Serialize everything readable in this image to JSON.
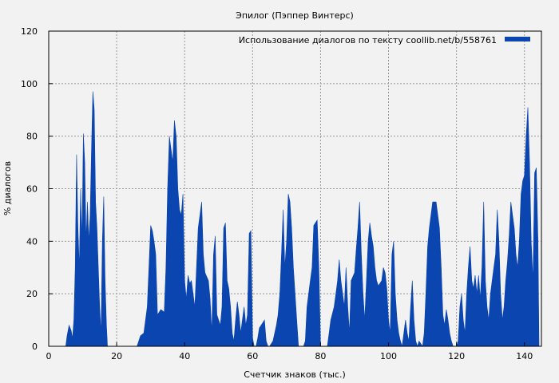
{
  "chart_data": {
    "type": "area",
    "title": "Эпилог (Пэппер Винтерс)",
    "xlabel": "Счетчик знаков (тыс.)",
    "ylabel": "% диалогов",
    "xlim": [
      0,
      145
    ],
    "ylim": [
      0,
      120
    ],
    "x_ticks": [
      0,
      20,
      40,
      60,
      80,
      100,
      120,
      140
    ],
    "y_ticks": [
      0,
      20,
      40,
      60,
      80,
      100,
      120
    ],
    "grid": true,
    "legend_position": "top-right",
    "series": [
      {
        "name": "Использование диалогов по тексту  coollib.net/b/558761",
        "color": "#0b45b0",
        "points": [
          [
            0,
            0
          ],
          [
            5,
            0
          ],
          [
            5.4,
            4
          ],
          [
            6,
            8
          ],
          [
            6.6,
            6
          ],
          [
            7,
            3
          ],
          [
            7.4,
            10
          ],
          [
            7.8,
            30
          ],
          [
            8.2,
            73
          ],
          [
            8.6,
            45
          ],
          [
            9,
            30
          ],
          [
            9.4,
            60
          ],
          [
            9.8,
            40
          ],
          [
            10.2,
            81
          ],
          [
            10.6,
            70
          ],
          [
            11,
            40
          ],
          [
            11.4,
            55
          ],
          [
            11.8,
            40
          ],
          [
            12.2,
            50
          ],
          [
            12.6,
            75
          ],
          [
            13,
            97
          ],
          [
            13.4,
            90
          ],
          [
            13.8,
            55
          ],
          [
            14.2,
            45
          ],
          [
            14.6,
            30
          ],
          [
            15,
            15
          ],
          [
            15.4,
            5
          ],
          [
            15.8,
            40
          ],
          [
            16.2,
            57
          ],
          [
            16.6,
            25
          ],
          [
            17,
            8
          ],
          [
            17.3,
            0
          ],
          [
            26,
            0
          ],
          [
            27,
            4
          ],
          [
            28,
            5
          ],
          [
            29,
            15
          ],
          [
            29.5,
            30
          ],
          [
            30,
            46
          ],
          [
            30.5,
            44
          ],
          [
            31,
            40
          ],
          [
            31.5,
            35
          ],
          [
            32,
            12
          ],
          [
            33,
            14
          ],
          [
            34,
            13
          ],
          [
            34.5,
            30
          ],
          [
            35,
            60
          ],
          [
            35.5,
            80
          ],
          [
            36,
            75
          ],
          [
            36.5,
            70
          ],
          [
            37,
            86
          ],
          [
            37.5,
            80
          ],
          [
            38,
            60
          ],
          [
            38.5,
            52
          ],
          [
            39,
            50
          ],
          [
            39.5,
            58
          ],
          [
            40,
            25
          ],
          [
            40.5,
            18
          ],
          [
            41,
            27
          ],
          [
            41.5,
            24
          ],
          [
            42,
            25
          ],
          [
            42.5,
            20
          ],
          [
            43,
            15
          ],
          [
            43.5,
            30
          ],
          [
            44,
            45
          ],
          [
            44.5,
            50
          ],
          [
            45,
            55
          ],
          [
            45.5,
            35
          ],
          [
            46,
            28
          ],
          [
            47,
            25
          ],
          [
            47.5,
            18
          ],
          [
            48,
            5
          ],
          [
            48.5,
            35
          ],
          [
            49,
            42
          ],
          [
            49.5,
            12
          ],
          [
            50,
            10
          ],
          [
            50.5,
            8
          ],
          [
            51,
            15
          ],
          [
            51.5,
            45
          ],
          [
            52,
            47
          ],
          [
            52.5,
            25
          ],
          [
            53,
            22
          ],
          [
            53.5,
            15
          ],
          [
            54,
            5
          ],
          [
            54.5,
            2
          ],
          [
            55,
            10
          ],
          [
            55.5,
            17
          ],
          [
            56,
            12
          ],
          [
            56.5,
            5
          ],
          [
            57,
            10
          ],
          [
            57.5,
            15
          ],
          [
            58,
            8
          ],
          [
            58.5,
            12
          ],
          [
            59,
            43
          ],
          [
            59.5,
            44
          ],
          [
            60,
            3
          ],
          [
            60.5,
            0
          ],
          [
            61,
            0
          ],
          [
            61.5,
            3
          ],
          [
            62,
            7
          ],
          [
            63,
            9
          ],
          [
            63.5,
            10
          ],
          [
            64,
            2
          ],
          [
            64.5,
            0
          ],
          [
            65,
            0
          ],
          [
            66,
            2
          ],
          [
            67,
            8
          ],
          [
            67.5,
            12
          ],
          [
            68,
            20
          ],
          [
            68.5,
            35
          ],
          [
            69,
            52
          ],
          [
            69.5,
            30
          ],
          [
            70,
            40
          ],
          [
            70.5,
            58
          ],
          [
            71,
            55
          ],
          [
            71.5,
            45
          ],
          [
            72,
            30
          ],
          [
            72.5,
            20
          ],
          [
            73,
            10
          ],
          [
            73.5,
            0
          ],
          [
            74,
            0
          ],
          [
            75,
            0
          ],
          [
            75.5,
            2
          ],
          [
            76,
            15
          ],
          [
            77,
            25
          ],
          [
            77.5,
            30
          ],
          [
            78,
            46
          ],
          [
            78.5,
            47
          ],
          [
            79,
            48
          ],
          [
            79.5,
            30
          ],
          [
            80,
            0
          ],
          [
            82,
            0
          ],
          [
            82.5,
            5
          ],
          [
            83,
            10
          ],
          [
            84,
            15
          ],
          [
            84.5,
            20
          ],
          [
            85,
            25
          ],
          [
            85.5,
            33
          ],
          [
            86,
            25
          ],
          [
            87,
            15
          ],
          [
            87.5,
            30
          ],
          [
            88,
            15
          ],
          [
            88.5,
            5
          ],
          [
            89,
            25
          ],
          [
            90,
            28
          ],
          [
            90.5,
            37
          ],
          [
            91,
            45
          ],
          [
            91.5,
            55
          ],
          [
            92,
            35
          ],
          [
            92.5,
            20
          ],
          [
            93,
            10
          ],
          [
            93.5,
            25
          ],
          [
            94,
            40
          ],
          [
            94.5,
            47
          ],
          [
            95,
            42
          ],
          [
            95.5,
            38
          ],
          [
            96,
            30
          ],
          [
            96.5,
            25
          ],
          [
            97,
            23
          ],
          [
            98,
            25
          ],
          [
            98.5,
            30
          ],
          [
            99,
            28
          ],
          [
            99.5,
            22
          ],
          [
            100,
            10
          ],
          [
            100.5,
            5
          ],
          [
            101,
            35
          ],
          [
            101.5,
            40
          ],
          [
            102,
            20
          ],
          [
            102.5,
            10
          ],
          [
            103,
            5
          ],
          [
            103.5,
            2
          ],
          [
            104,
            0
          ],
          [
            104.5,
            5
          ],
          [
            105,
            10
          ],
          [
            105.5,
            5
          ],
          [
            106,
            2
          ],
          [
            106.5,
            15
          ],
          [
            107,
            25
          ],
          [
            107.5,
            10
          ],
          [
            108,
            2
          ],
          [
            108.5,
            0
          ],
          [
            109,
            2
          ],
          [
            110,
            0
          ],
          [
            110.5,
            5
          ],
          [
            111,
            20
          ],
          [
            111.5,
            38
          ],
          [
            112,
            45
          ],
          [
            112.5,
            50
          ],
          [
            113,
            55
          ],
          [
            114,
            55
          ],
          [
            114.5,
            50
          ],
          [
            115,
            45
          ],
          [
            115.5,
            30
          ],
          [
            116,
            12
          ],
          [
            116.5,
            8
          ],
          [
            117,
            14
          ],
          [
            117.5,
            10
          ],
          [
            118,
            5
          ],
          [
            118.5,
            2
          ],
          [
            119,
            0
          ],
          [
            120,
            0
          ],
          [
            120.5,
            2
          ],
          [
            121,
            15
          ],
          [
            121.5,
            20
          ],
          [
            122,
            10
          ],
          [
            122.5,
            5
          ],
          [
            123,
            20
          ],
          [
            123.5,
            30
          ],
          [
            124,
            38
          ],
          [
            124.5,
            25
          ],
          [
            125,
            22
          ],
          [
            125.5,
            27
          ],
          [
            126,
            20
          ],
          [
            126.5,
            27
          ],
          [
            127,
            18
          ],
          [
            127.5,
            30
          ],
          [
            128,
            55
          ],
          [
            128.5,
            25
          ],
          [
            129,
            15
          ],
          [
            129.5,
            10
          ],
          [
            130,
            20
          ],
          [
            130.5,
            25
          ],
          [
            131,
            30
          ],
          [
            131.5,
            35
          ],
          [
            132,
            52
          ],
          [
            132.5,
            40
          ],
          [
            133,
            20
          ],
          [
            133.5,
            10
          ],
          [
            134,
            15
          ],
          [
            134.5,
            25
          ],
          [
            135,
            32
          ],
          [
            135.5,
            42
          ],
          [
            136,
            55
          ],
          [
            136.5,
            50
          ],
          [
            137,
            45
          ],
          [
            137.5,
            35
          ],
          [
            138,
            30
          ],
          [
            138.5,
            40
          ],
          [
            139,
            58
          ],
          [
            139.5,
            63
          ],
          [
            140,
            65
          ],
          [
            140.5,
            80
          ],
          [
            141,
            91
          ],
          [
            141.5,
            70
          ],
          [
            142,
            40
          ],
          [
            142.5,
            25
          ],
          [
            143,
            66
          ],
          [
            143.5,
            68
          ],
          [
            144,
            40
          ],
          [
            144.3,
            0
          ]
        ]
      }
    ]
  }
}
